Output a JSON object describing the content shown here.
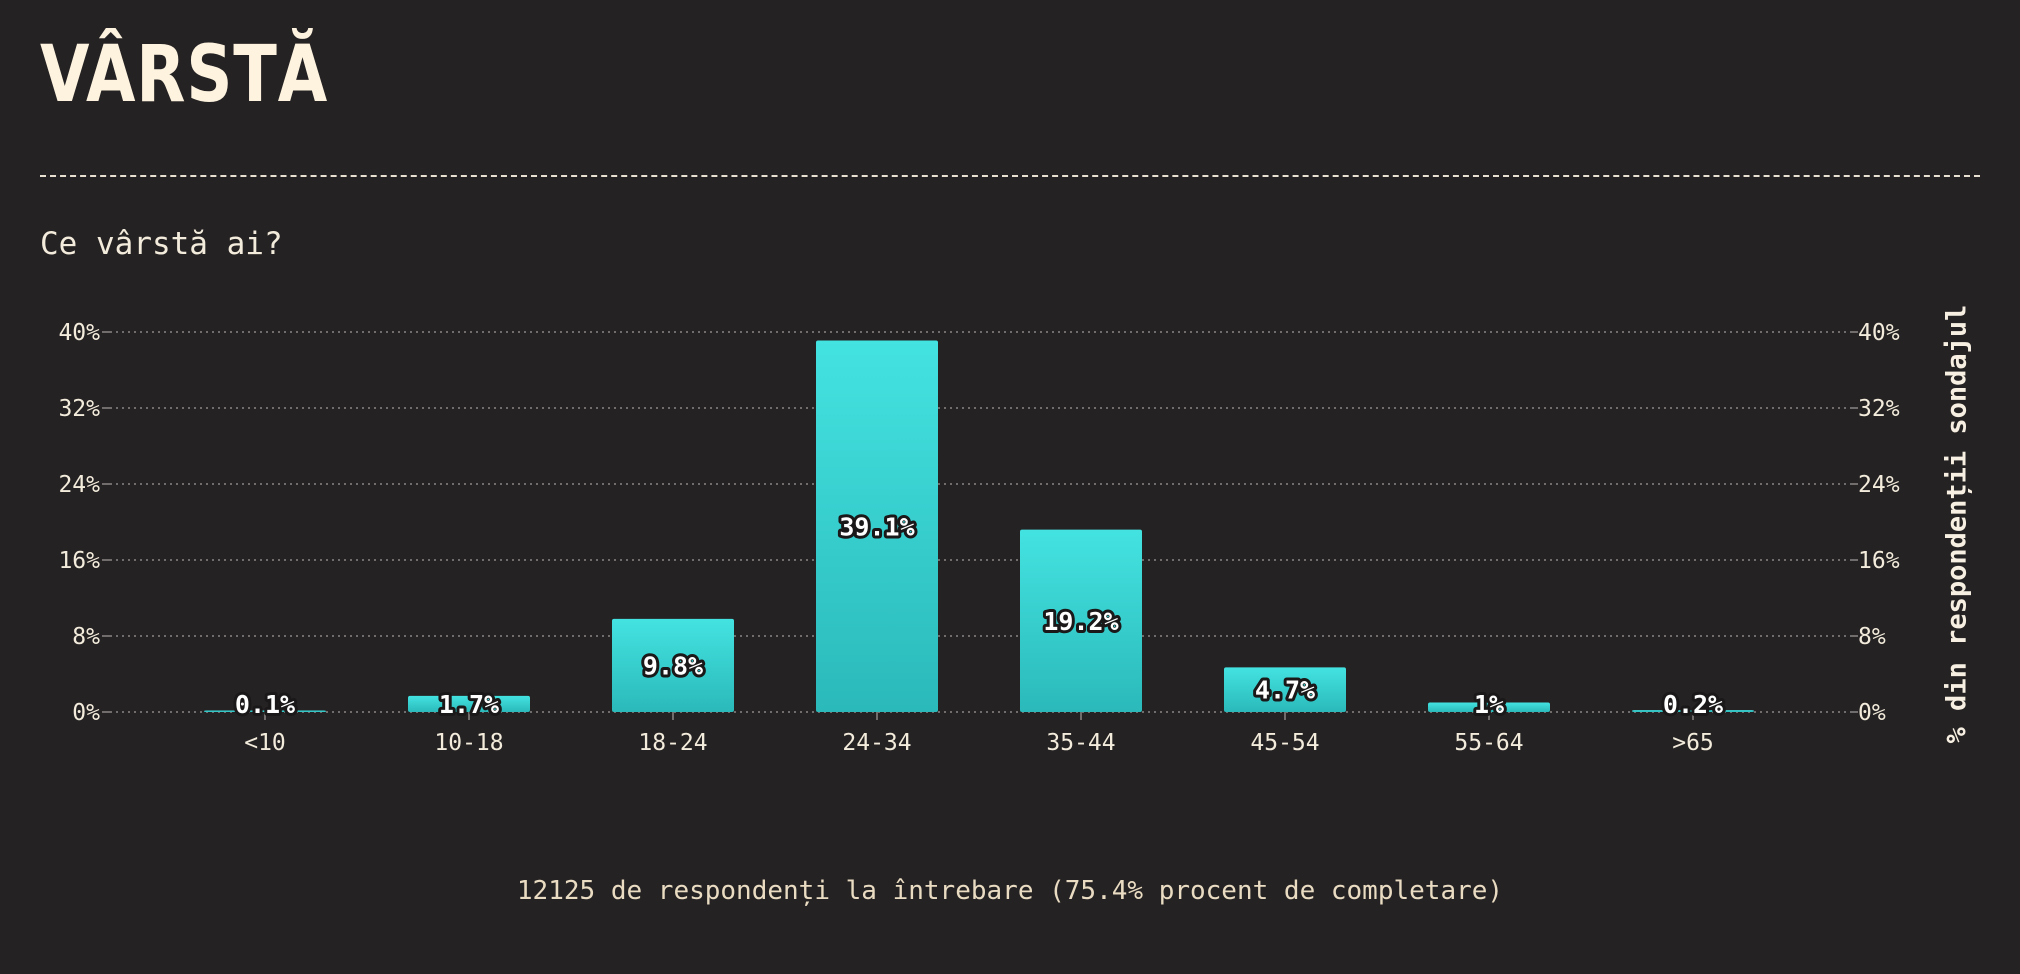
{
  "header": {
    "title": "VÂRSTĂ",
    "question": "Ce vârstă ai?"
  },
  "footer": {
    "note": "12125 de respondenți la întrebare (75.4% procent de completare)"
  },
  "chart_data": {
    "type": "bar",
    "categories": [
      "<10",
      "10-18",
      "18-24",
      "24-34",
      "35-44",
      "45-54",
      "55-64",
      ">65"
    ],
    "values": [
      0.1,
      1.7,
      9.8,
      39.1,
      19.2,
      4.7,
      1.0,
      0.2
    ],
    "value_labels": [
      "0.1%",
      "1.7%",
      "9.8%",
      "39.1%",
      "19.2%",
      "4.7%",
      "1%",
      "0.2%"
    ],
    "title": "",
    "xlabel": "",
    "ylabel": "% din respondenții sondajul",
    "ylim": [
      0,
      40
    ],
    "yticks": [
      0,
      8,
      16,
      24,
      32,
      40
    ],
    "ytick_labels": [
      "0%",
      "8%",
      "16%",
      "24%",
      "32%",
      "40%"
    ],
    "grid": true,
    "colors": {
      "bar_top": "#43e3e1",
      "bar_bottom": "#2bb9ba",
      "grid": "#8a8684"
    }
  }
}
